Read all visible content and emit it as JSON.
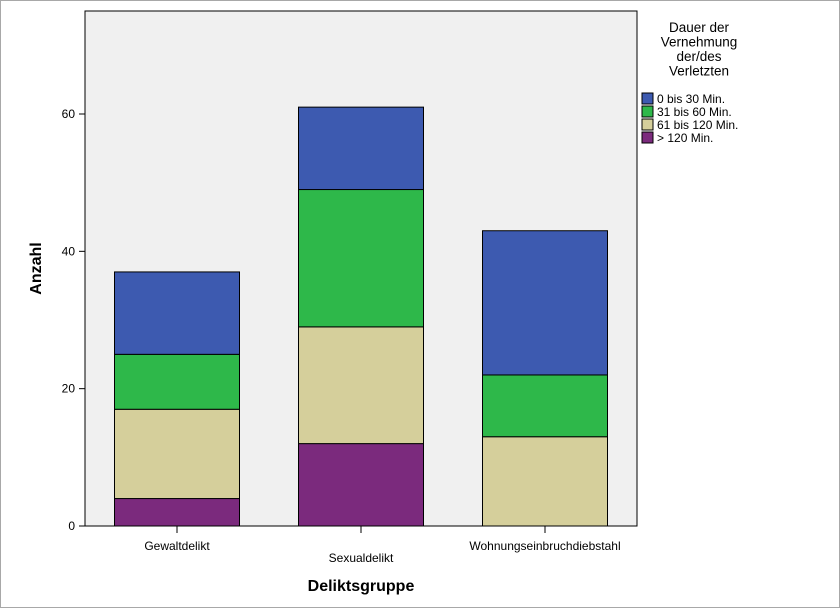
{
  "chart_data": {
    "type": "bar",
    "stacked": true,
    "categories": [
      "Gewaltdelikt",
      "Sexualdelikt",
      "Wohnungseinbruchdiebstahl"
    ],
    "series": [
      {
        "name": "> 120 Min.",
        "color": "#7b2a7d",
        "values": [
          4,
          12,
          0
        ]
      },
      {
        "name": "61 bis 120 Min.",
        "color": "#d5cf9b",
        "values": [
          13,
          17,
          13
        ]
      },
      {
        "name": "31 bis 60 Min.",
        "color": "#2eb84a",
        "values": [
          8,
          20,
          9
        ]
      },
      {
        "name": "0 bis 30 Min.",
        "color": "#3d5ab0",
        "values": [
          12,
          12,
          21
        ]
      }
    ],
    "xlabel": "Deliktsgruppe",
    "ylabel": "Anzahl",
    "ylim": [
      0,
      75
    ],
    "yticks": [
      "0",
      "20",
      "40",
      "60"
    ],
    "legend": {
      "title_lines": [
        "Dauer der",
        "Vernehmung",
        "der/des",
        "Verletzten"
      ],
      "entries": [
        "0 bis 30 Min.",
        "31 bis 60 Min.",
        "61 bis 120 Min.",
        "> 120 Min."
      ],
      "placement": "right"
    },
    "grid": false,
    "plot_background": "#f0f0f0"
  }
}
